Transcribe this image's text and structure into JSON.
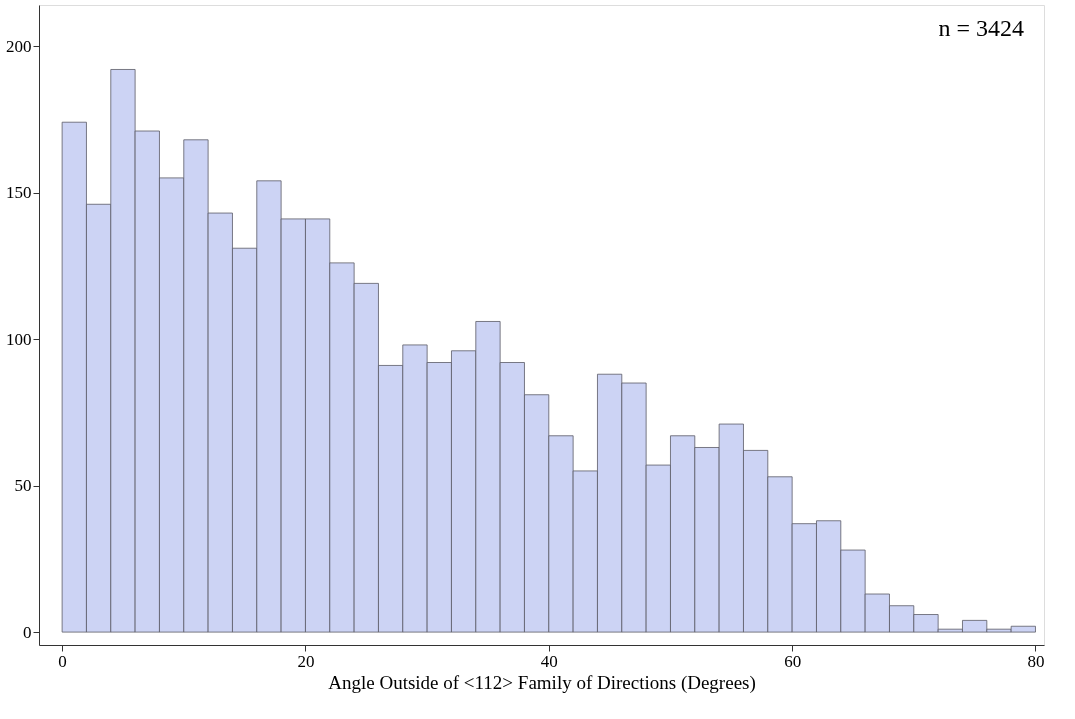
{
  "chart_data": {
    "type": "histogram",
    "xlabel": "Angle Outside of <112> Family of Directions (Degrees)",
    "bins": [
      0,
      2,
      4,
      6,
      8,
      10,
      12,
      14,
      16,
      18,
      20,
      22,
      24,
      26,
      28,
      30,
      32,
      34,
      36,
      38,
      40,
      42,
      44,
      46,
      48,
      50,
      52,
      54,
      56,
      58,
      60,
      62,
      64,
      66,
      68,
      70,
      72,
      74,
      76,
      78,
      80
    ],
    "values": [
      174,
      146,
      192,
      171,
      155,
      168,
      143,
      131,
      154,
      141,
      141,
      126,
      119,
      91,
      98,
      92,
      96,
      106,
      92,
      81,
      67,
      55,
      88,
      85,
      57,
      67,
      63,
      71,
      62,
      53,
      37,
      38,
      28,
      13,
      9,
      6,
      1,
      4,
      1,
      2
    ],
    "color": "#ccd3f4",
    "xlim": [
      -1.9,
      80.7
    ],
    "ylim": [
      -4.4,
      214
    ],
    "xticks": [
      0,
      20,
      40,
      60,
      80
    ],
    "yticks": [
      0,
      50,
      100,
      150,
      200
    ],
    "grid": false,
    "annotations": [
      "n = 3424"
    ]
  }
}
